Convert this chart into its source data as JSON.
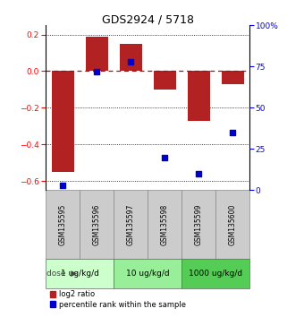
{
  "title": "GDS2924 / 5718",
  "samples": [
    "GSM135595",
    "GSM135596",
    "GSM135597",
    "GSM135598",
    "GSM135599",
    "GSM135600"
  ],
  "log2_ratio": [
    -0.55,
    0.19,
    0.15,
    -0.1,
    -0.27,
    -0.07
  ],
  "percentile_rank": [
    3,
    72,
    78,
    20,
    10,
    35
  ],
  "bar_color": "#b22222",
  "dot_color": "#0000cc",
  "ylim_left": [
    -0.65,
    0.25
  ],
  "ylim_right": [
    0,
    100
  ],
  "yticks_left": [
    -0.6,
    -0.4,
    -0.2,
    0.0,
    0.2
  ],
  "yticks_right": [
    0,
    25,
    50,
    75,
    100
  ],
  "ytick_labels_right": [
    "0",
    "25",
    "50",
    "75",
    "100%"
  ],
  "dose_groups": [
    {
      "label": "1 ug/kg/d",
      "samples": [
        0,
        1
      ],
      "color": "#ccffcc"
    },
    {
      "label": "10 ug/kg/d",
      "samples": [
        2,
        3
      ],
      "color": "#99ee99"
    },
    {
      "label": "1000 ug/kg/d",
      "samples": [
        4,
        5
      ],
      "color": "#55cc55"
    }
  ],
  "bar_width": 0.65,
  "dot_size": 25,
  "hline_color": "#cc0000",
  "hline_style": "--",
  "legend_red_label": "log2 ratio",
  "legend_blue_label": "percentile rank within the sample",
  "sample_box_color": "#cccccc",
  "sample_box_edge": "#888888"
}
